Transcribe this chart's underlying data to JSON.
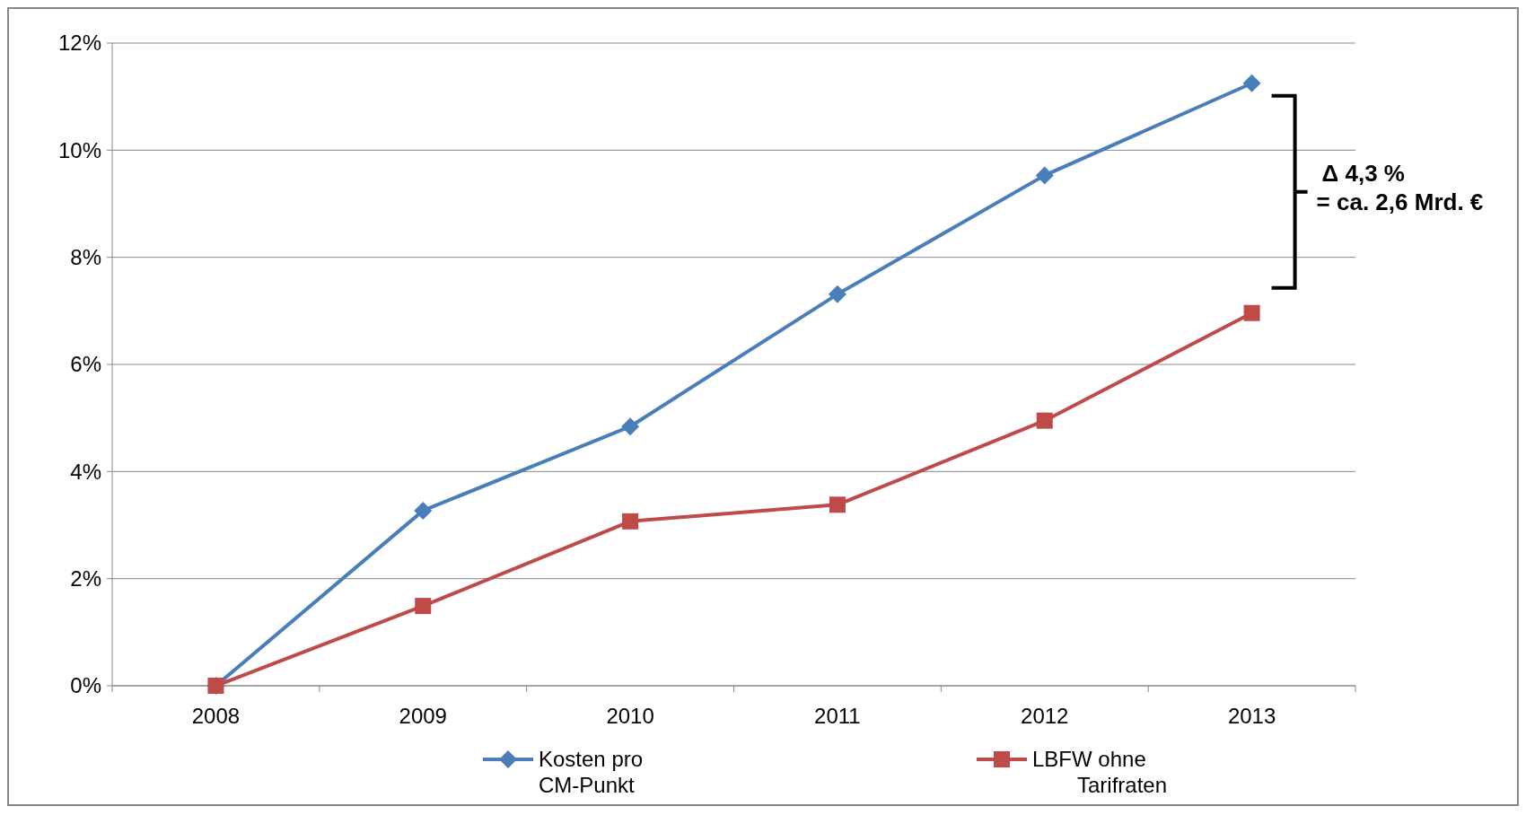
{
  "chart_data": {
    "type": "line",
    "categories": [
      "2008",
      "2009",
      "2010",
      "2011",
      "2012",
      "2013"
    ],
    "series": [
      {
        "name": "Kosten pro CM-Punkt",
        "color": "#4a7ebb",
        "marker": "diamond",
        "values": [
          0,
          3.27,
          4.84,
          7.31,
          9.53,
          11.25
        ]
      },
      {
        "name": "LBFW ohne Tarifraten",
        "color": "#be4b48",
        "marker": "square",
        "values": [
          0,
          1.49,
          3.07,
          3.38,
          4.95,
          6.96
        ]
      }
    ],
    "ylim": [
      0,
      12
    ],
    "yticks": [
      {
        "value": 0,
        "label": "0%"
      },
      {
        "value": 2,
        "label": "2%"
      },
      {
        "value": 4,
        "label": "4%"
      },
      {
        "value": 6,
        "label": "6%"
      },
      {
        "value": 8,
        "label": "8%"
      },
      {
        "value": 10,
        "label": "10%"
      },
      {
        "value": 12,
        "label": "12%"
      }
    ],
    "grid": "y",
    "legend": "bottom",
    "line_style": "solid",
    "annotations": [
      "Δ 4,3 %\n= ca. 2,6 Mrd. €"
    ]
  }
}
